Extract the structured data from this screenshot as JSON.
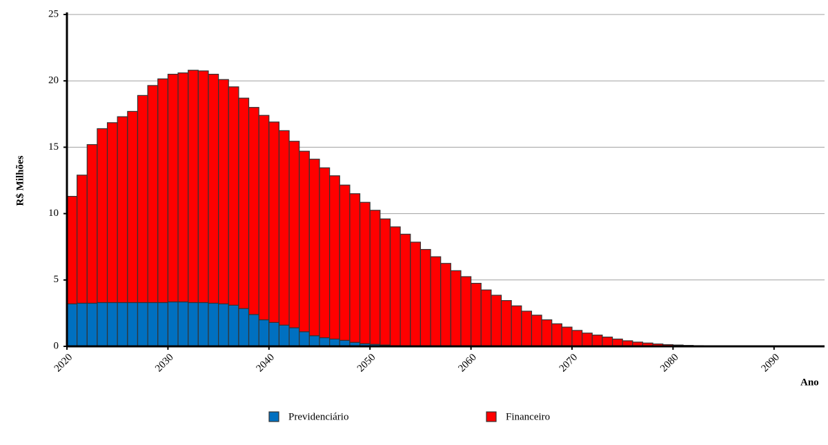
{
  "chart_data": {
    "type": "stacked_bar",
    "x": [
      2020,
      2021,
      2022,
      2023,
      2024,
      2025,
      2026,
      2027,
      2028,
      2029,
      2030,
      2031,
      2032,
      2033,
      2034,
      2035,
      2036,
      2037,
      2038,
      2039,
      2040,
      2041,
      2042,
      2043,
      2044,
      2045,
      2046,
      2047,
      2048,
      2049,
      2050,
      2051,
      2052,
      2053,
      2054,
      2055,
      2056,
      2057,
      2058,
      2059,
      2060,
      2061,
      2062,
      2063,
      2064,
      2065,
      2066,
      2067,
      2068,
      2069,
      2070,
      2071,
      2072,
      2073,
      2074,
      2075,
      2076,
      2077,
      2078,
      2079,
      2080,
      2081,
      2082,
      2083,
      2084,
      2085,
      2086,
      2087,
      2088,
      2089,
      2090,
      2091,
      2092,
      2093,
      2094
    ],
    "series": [
      {
        "name": "Previdenciário",
        "color": "#0070c0",
        "values": [
          3.2,
          3.25,
          3.25,
          3.3,
          3.3,
          3.3,
          3.3,
          3.3,
          3.3,
          3.3,
          3.35,
          3.35,
          3.3,
          3.3,
          3.25,
          3.2,
          3.1,
          2.85,
          2.4,
          2.0,
          1.8,
          1.6,
          1.4,
          1.1,
          0.8,
          0.65,
          0.55,
          0.45,
          0.3,
          0.2,
          0.15,
          0.1,
          0.05,
          0.03,
          0,
          0,
          0,
          0,
          0,
          0,
          0,
          0,
          0,
          0,
          0,
          0,
          0,
          0,
          0,
          0,
          0,
          0,
          0,
          0,
          0,
          0,
          0,
          0,
          0,
          0,
          0,
          0,
          0,
          0,
          0,
          0,
          0,
          0,
          0,
          0,
          0,
          0,
          0,
          0,
          0
        ]
      },
      {
        "name": "Financeiro",
        "color": "#ff0000",
        "values": [
          8.1,
          9.65,
          11.95,
          13.1,
          13.55,
          14.0,
          14.4,
          15.6,
          16.35,
          16.85,
          17.15,
          17.25,
          17.5,
          17.45,
          17.25,
          16.9,
          16.45,
          15.85,
          15.6,
          15.4,
          15.1,
          14.65,
          14.05,
          13.6,
          13.3,
          12.8,
          12.3,
          11.7,
          11.2,
          10.65,
          10.1,
          9.5,
          8.95,
          8.42,
          7.85,
          7.3,
          6.75,
          6.25,
          5.7,
          5.25,
          4.75,
          4.25,
          3.85,
          3.45,
          3.05,
          2.65,
          2.35,
          2.0,
          1.7,
          1.45,
          1.2,
          1.0,
          0.85,
          0.7,
          0.55,
          0.42,
          0.32,
          0.25,
          0.18,
          0.13,
          0.1,
          0.07,
          0.05,
          0.04,
          0.03,
          0.02,
          0.015,
          0.01,
          0.01,
          0.01,
          0.005,
          0,
          0,
          0,
          0
        ]
      }
    ],
    "xlabel": "Ano",
    "ylabel": "R$ Milhões",
    "xlim": [
      2020,
      2095
    ],
    "xticks": [
      2020,
      2030,
      2040,
      2050,
      2060,
      2070,
      2080,
      2090
    ],
    "ylim": [
      0,
      25
    ],
    "yticks": [
      0,
      5,
      10,
      15,
      20,
      25
    ],
    "grid": true,
    "legend": "bottom"
  }
}
